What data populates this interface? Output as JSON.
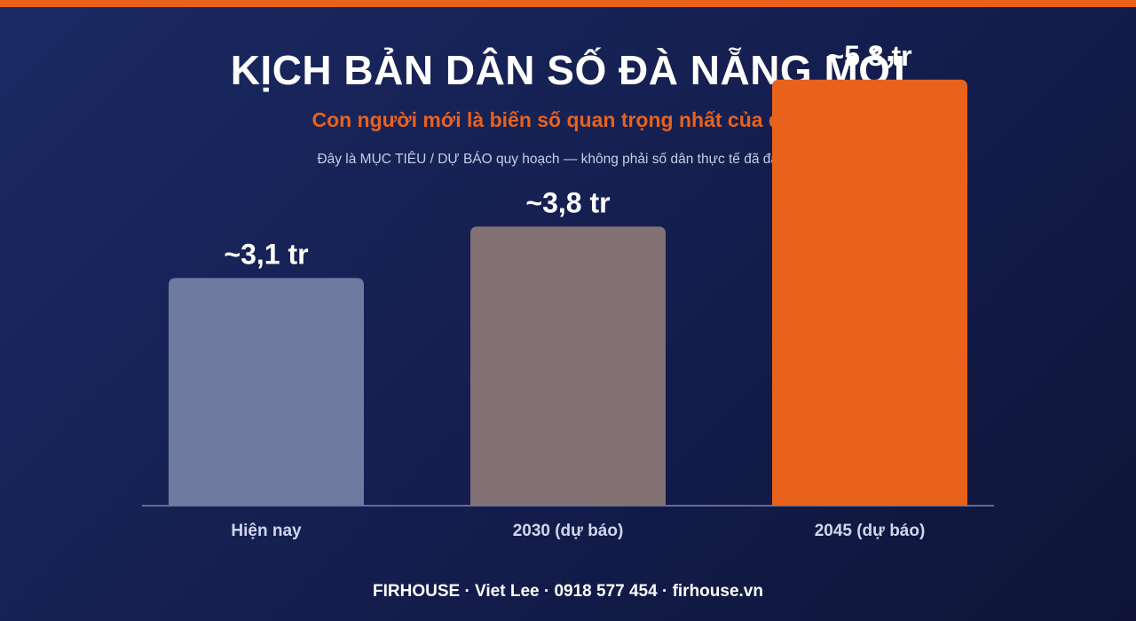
{
  "header": {
    "title": "KỊCH BẢN DÂN SỐ ĐÀ NẴNG MỚI",
    "subtitle": "Con người mới là biến số quan trọng nhất của đô thị",
    "note": "Đây là MỤC TIÊU / DỰ BÁO quy hoạch — không phải số dân thực tế đã đạt được"
  },
  "colors": {
    "accent": "#e8621c",
    "bar_current": "#6e7aa0",
    "bar_2030": "#837274",
    "bar_2045": "#e8621c",
    "baseline": "#7d86ad",
    "category_label": "#d0d6ee"
  },
  "chart_data": {
    "type": "bar",
    "categories": [
      "Hiện nay",
      "2030 (dự báo)",
      "2045 (dự báo)"
    ],
    "values": [
      3.1,
      3.8,
      5.8
    ],
    "value_labels": [
      "~3,1 tr",
      "~3,8 tr",
      "~5,8 tr"
    ],
    "unit": "tr",
    "ylim": [
      0,
      6.8
    ],
    "grid": false,
    "legend": "none"
  },
  "footer": {
    "text": "FIRHOUSE · Viet Lee · 0918 577 454 · firhouse.vn"
  }
}
